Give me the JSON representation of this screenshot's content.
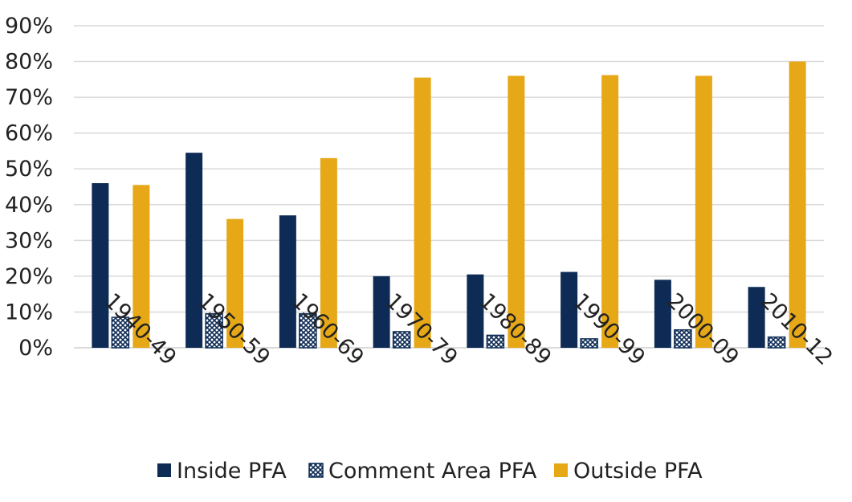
{
  "chart_data": {
    "type": "bar",
    "categories": [
      "1940-49",
      "1950-59",
      "1960-69",
      "1970-79",
      "1980-89",
      "1990-99",
      "2000-09",
      "2010-12"
    ],
    "series": [
      {
        "name": "Inside PFA",
        "color": "#0d2b55",
        "pattern": "solid",
        "values": [
          46,
          54.5,
          37,
          20,
          20.5,
          21.2,
          19,
          17
        ]
      },
      {
        "name": "Comment Area PFA",
        "color": "#0d2b55",
        "pattern": "crosshatch",
        "values": [
          8.5,
          9.5,
          9.5,
          4.5,
          3.5,
          2.5,
          5,
          3
        ]
      },
      {
        "name": "Outside PFA",
        "color": "#e6a817",
        "pattern": "solid",
        "values": [
          45.5,
          36,
          53,
          75.5,
          76,
          76.2,
          76,
          80
        ]
      }
    ],
    "y_ticks": [
      "0%",
      "10%",
      "20%",
      "30%",
      "40%",
      "50%",
      "60%",
      "70%",
      "80%",
      "90%"
    ],
    "ylim": [
      0,
      90
    ],
    "title": "",
    "xlabel": "",
    "ylabel": "",
    "grid": true,
    "legend_position": "bottom"
  }
}
